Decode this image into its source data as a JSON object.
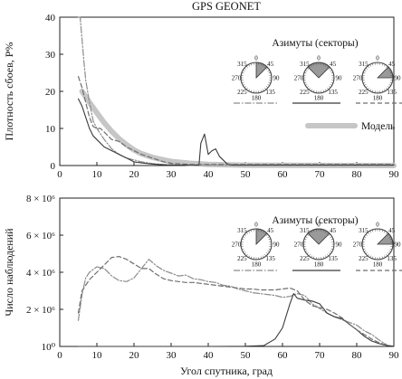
{
  "figure_title": "GPS GEONET",
  "xlabel": "Угол спутника, град",
  "legend_header": "Азимуты (секторы)",
  "dial_labels": [
    "0",
    "45",
    "90",
    "135",
    "180",
    "225",
    "270",
    "315"
  ],
  "colors": {
    "dashdot": "#8c8c8c",
    "solid": "#3a3a3a",
    "dashed": "#6e6e6e",
    "model": "#c6c6c6"
  },
  "chart_data": [
    {
      "type": "line",
      "ylabel": "Плотность сбоев, P%",
      "xlim": [
        0,
        90
      ],
      "ylim": [
        0,
        40
      ],
      "xticks": [
        0,
        10,
        20,
        30,
        40,
        50,
        60,
        70,
        80,
        90
      ],
      "yticks": [
        0,
        10,
        20,
        30,
        40
      ],
      "grid": false,
      "legend": "upper-right",
      "series": [
        {
          "style": "dashdot",
          "highlight_sector": "0-45",
          "x": [
            5,
            5.5,
            6,
            6.5,
            7,
            8,
            9,
            10,
            12,
            14,
            16,
            18,
            20,
            22,
            25,
            28,
            30,
            35,
            40,
            50,
            60,
            70,
            80,
            90
          ],
          "y": [
            45,
            40,
            34,
            28,
            23,
            17,
            12,
            10,
            7,
            4.5,
            3,
            2,
            1.5,
            1,
            0.5,
            0.3,
            0.2,
            0.1,
            0.1,
            0.1,
            0.1,
            0.1,
            0.1,
            0.1
          ]
        },
        {
          "style": "solid",
          "highlight_sector": "315-45",
          "x": [
            5,
            6,
            7,
            8,
            9,
            10,
            12,
            14,
            16,
            18,
            20,
            22,
            25,
            28,
            30,
            35,
            37.5,
            38,
            39,
            40,
            41,
            42,
            43,
            44,
            45,
            46,
            47,
            50,
            60,
            70,
            80,
            90
          ],
          "y": [
            18,
            16,
            13,
            10,
            8,
            7,
            5,
            4,
            3,
            2,
            1,
            0.7,
            0.4,
            0.2,
            0.1,
            0.1,
            0.1,
            6,
            8.5,
            3,
            4,
            4.5,
            2.5,
            1.5,
            0.5,
            0.2,
            0.1,
            0.1,
            0.1,
            0.1,
            0.1,
            0.1
          ]
        },
        {
          "style": "dashed",
          "highlight_sector": "45-90",
          "x": [
            5,
            6,
            7,
            8,
            9,
            10,
            11,
            12,
            14,
            16,
            18,
            20,
            22,
            25,
            28,
            30,
            35,
            40,
            50,
            60,
            70,
            80,
            90
          ],
          "y": [
            24,
            21,
            17,
            13,
            10.5,
            10,
            10,
            9,
            7,
            6.5,
            5,
            4,
            3,
            2,
            1,
            0.6,
            0.3,
            0.3,
            0.3,
            0.3,
            0.3,
            0.3,
            0.3
          ]
        },
        {
          "name": "Модель",
          "style": "model",
          "x": [
            6,
            8,
            10,
            12,
            14,
            16,
            18,
            20,
            22,
            25,
            28,
            30,
            35,
            40,
            50,
            60,
            70,
            80,
            90
          ],
          "y": [
            20,
            17,
            14.2,
            11.5,
            9.2,
            7.2,
            5.6,
            4.2,
            3.2,
            2.2,
            1.5,
            1.1,
            0.6,
            0.3,
            0.1,
            0.05,
            0.02,
            0.01,
            0.01
          ]
        }
      ]
    },
    {
      "type": "line",
      "ylabel": "Число наблюдений",
      "xlim": [
        0,
        90
      ],
      "ylim": [
        1,
        8000000
      ],
      "xticks": [
        0,
        10,
        20,
        30,
        40,
        50,
        60,
        70,
        80,
        90
      ],
      "yticks": [
        1,
        2000000,
        4000000,
        6000000,
        8000000
      ],
      "ytick_labels": [
        "10⁰",
        "2 × 10⁶",
        "4 × 10⁶",
        "6 × 10⁶",
        "8 × 10⁶"
      ],
      "grid": false,
      "legend": "upper-right",
      "series": [
        {
          "style": "dashdot",
          "highlight_sector": "0-45",
          "x": [
            5,
            6,
            7,
            8,
            10,
            12,
            14,
            16,
            18,
            20,
            22,
            24,
            26,
            28,
            30,
            32,
            34,
            36,
            38,
            40,
            42,
            44,
            46,
            48,
            50,
            52,
            54,
            56,
            58,
            60,
            62,
            64,
            66,
            68,
            70,
            72,
            74,
            76,
            78,
            80,
            82,
            84,
            86,
            88
          ],
          "y": [
            1400000,
            2800000,
            3700000,
            4000000,
            4300000,
            4200000,
            3800000,
            3550000,
            3500000,
            3700000,
            4200000,
            4700000,
            4350000,
            4100000,
            3950000,
            3800000,
            3850000,
            3650000,
            3600000,
            3500000,
            3450000,
            3300000,
            3250000,
            3100000,
            3000000,
            2900000,
            2850000,
            2800000,
            2750000,
            2650000,
            2700000,
            2850000,
            2750000,
            2300000,
            2050000,
            1800000,
            1600000,
            1450000,
            1300000,
            1150000,
            850000,
            650000,
            350000,
            100000
          ]
        },
        {
          "style": "solid",
          "highlight_sector": "315-45",
          "x": [
            5,
            40,
            50,
            55,
            58,
            60,
            62,
            63,
            64,
            66,
            68,
            70,
            72,
            74,
            76,
            78,
            80,
            82,
            84,
            86,
            88,
            90
          ],
          "y": [
            1,
            1,
            10000,
            50000,
            400000,
            1000000,
            2300000,
            2850000,
            2600000,
            2500000,
            2450000,
            2300000,
            1800000,
            1600000,
            1500000,
            1200000,
            900000,
            550000,
            300000,
            150000,
            60000,
            10000
          ]
        },
        {
          "style": "dashed",
          "highlight_sector": "45-90",
          "x": [
            5,
            6,
            8,
            10,
            12,
            14,
            16,
            18,
            20,
            22,
            24,
            26,
            28,
            30,
            32,
            34,
            36,
            38,
            40,
            42,
            44,
            46,
            48,
            50,
            52,
            54,
            56,
            58,
            60,
            62,
            64,
            66,
            68,
            70,
            72,
            74,
            76,
            78,
            80,
            82,
            84,
            86,
            88
          ],
          "y": [
            1800000,
            3000000,
            3600000,
            4000000,
            4400000,
            4800000,
            4850000,
            4700000,
            4450000,
            4200000,
            4200000,
            3900000,
            3650000,
            3550000,
            3500000,
            3450000,
            3450000,
            3400000,
            3350000,
            3300000,
            3250000,
            3200000,
            3150000,
            3100000,
            3100000,
            3050000,
            3050000,
            3050000,
            3100000,
            3150000,
            3000000,
            2500000,
            2200000,
            2100000,
            2000000,
            1800000,
            1550000,
            1200000,
            900000,
            650000,
            400000,
            200000,
            80000
          ]
        }
      ]
    }
  ]
}
